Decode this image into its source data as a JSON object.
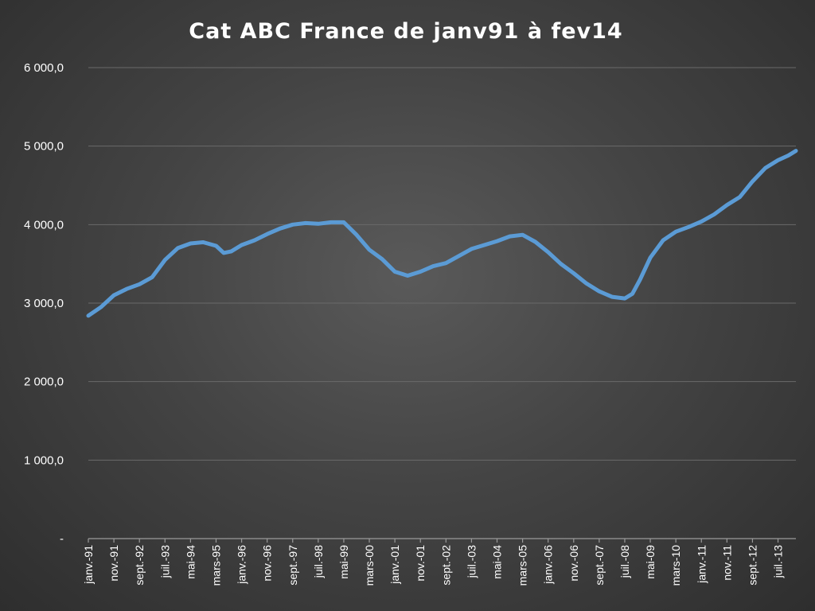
{
  "chart_data": {
    "type": "line",
    "title": "Cat ABC France de janv91 à fev14",
    "xlabel": "",
    "ylabel": "",
    "ylim": [
      0,
      6000
    ],
    "yticks": [
      0,
      1000,
      2000,
      3000,
      4000,
      5000,
      6000
    ],
    "ytick_labels": [
      "-",
      "1 000,0",
      "2 000,0",
      "3 000,0",
      "4 000,0",
      "5 000,0",
      "6 000,0"
    ],
    "grid": true,
    "legend": "none",
    "x_start": "janv.-91",
    "x_end": "févr.-14",
    "n_points": 278,
    "xtick_labels": [
      {
        "index": 0,
        "label": "janv.-91"
      },
      {
        "index": 10,
        "label": "nov.-91"
      },
      {
        "index": 20,
        "label": "sept.-92"
      },
      {
        "index": 30,
        "label": "juil.-93"
      },
      {
        "index": 40,
        "label": "mai-94"
      },
      {
        "index": 50,
        "label": "mars-95"
      },
      {
        "index": 60,
        "label": "janv.-96"
      },
      {
        "index": 70,
        "label": "nov.-96"
      },
      {
        "index": 80,
        "label": "sept.-97"
      },
      {
        "index": 90,
        "label": "juil.-98"
      },
      {
        "index": 100,
        "label": "mai-99"
      },
      {
        "index": 110,
        "label": "mars-00"
      },
      {
        "index": 120,
        "label": "janv.-01"
      },
      {
        "index": 130,
        "label": "nov.-01"
      },
      {
        "index": 140,
        "label": "sept.-02"
      },
      {
        "index": 150,
        "label": "juil.-03"
      },
      {
        "index": 160,
        "label": "mai-04"
      },
      {
        "index": 170,
        "label": "mars-05"
      },
      {
        "index": 180,
        "label": "janv.-06"
      },
      {
        "index": 190,
        "label": "nov.-06"
      },
      {
        "index": 200,
        "label": "sept.-07"
      },
      {
        "index": 210,
        "label": "juil.-08"
      },
      {
        "index": 220,
        "label": "mai-09"
      },
      {
        "index": 230,
        "label": "mars-10"
      },
      {
        "index": 240,
        "label": "janv.-11"
      },
      {
        "index": 250,
        "label": "nov.-11"
      },
      {
        "index": 260,
        "label": "sept.-12"
      },
      {
        "index": 270,
        "label": "juil.-13"
      }
    ],
    "series": [
      {
        "color": "#5b9bd5",
        "points": [
          {
            "i": 0,
            "date": "janv.-91",
            "y": 2840
          },
          {
            "i": 5,
            "date": "juin-91",
            "y": 2950
          },
          {
            "i": 10,
            "date": "nov.-91",
            "y": 3100
          },
          {
            "i": 15,
            "date": "avr.-92",
            "y": 3180
          },
          {
            "i": 20,
            "date": "sept.-92",
            "y": 3240
          },
          {
            "i": 25,
            "date": "févr.-93",
            "y": 3330
          },
          {
            "i": 30,
            "date": "juil.-93",
            "y": 3550
          },
          {
            "i": 35,
            "date": "déc.-93",
            "y": 3700
          },
          {
            "i": 40,
            "date": "mai-94",
            "y": 3760
          },
          {
            "i": 45,
            "date": "oct.-94",
            "y": 3775
          },
          {
            "i": 50,
            "date": "mars-95",
            "y": 3730
          },
          {
            "i": 53,
            "date": "juin-95",
            "y": 3640
          },
          {
            "i": 56,
            "date": "sept.-95",
            "y": 3660
          },
          {
            "i": 60,
            "date": "janv.-96",
            "y": 3740
          },
          {
            "i": 65,
            "date": "juin-96",
            "y": 3800
          },
          {
            "i": 70,
            "date": "nov.-96",
            "y": 3880
          },
          {
            "i": 75,
            "date": "avr.-97",
            "y": 3950
          },
          {
            "i": 80,
            "date": "sept.-97",
            "y": 4000
          },
          {
            "i": 85,
            "date": "févr.-98",
            "y": 4020
          },
          {
            "i": 90,
            "date": "juil.-98",
            "y": 4010
          },
          {
            "i": 95,
            "date": "déc.-98",
            "y": 4030
          },
          {
            "i": 100,
            "date": "mai-99",
            "y": 4030
          },
          {
            "i": 105,
            "date": "oct.-99",
            "y": 3870
          },
          {
            "i": 110,
            "date": "mars-00",
            "y": 3680
          },
          {
            "i": 115,
            "date": "août-00",
            "y": 3560
          },
          {
            "i": 120,
            "date": "janv.-01",
            "y": 3400
          },
          {
            "i": 125,
            "date": "juin-01",
            "y": 3350
          },
          {
            "i": 130,
            "date": "nov.-01",
            "y": 3400
          },
          {
            "i": 135,
            "date": "avr.-02",
            "y": 3470
          },
          {
            "i": 140,
            "date": "sept.-02",
            "y": 3510
          },
          {
            "i": 145,
            "date": "févr.-03",
            "y": 3600
          },
          {
            "i": 150,
            "date": "juil.-03",
            "y": 3690
          },
          {
            "i": 155,
            "date": "déc.-03",
            "y": 3740
          },
          {
            "i": 160,
            "date": "mai-04",
            "y": 3790
          },
          {
            "i": 165,
            "date": "oct.-04",
            "y": 3850
          },
          {
            "i": 170,
            "date": "mars-05",
            "y": 3870
          },
          {
            "i": 175,
            "date": "août-05",
            "y": 3780
          },
          {
            "i": 180,
            "date": "janv.-06",
            "y": 3650
          },
          {
            "i": 185,
            "date": "juin-06",
            "y": 3500
          },
          {
            "i": 190,
            "date": "nov.-06",
            "y": 3380
          },
          {
            "i": 195,
            "date": "avr.-07",
            "y": 3250
          },
          {
            "i": 200,
            "date": "sept.-07",
            "y": 3150
          },
          {
            "i": 205,
            "date": "févr.-08",
            "y": 3080
          },
          {
            "i": 210,
            "date": "juil.-08",
            "y": 3060
          },
          {
            "i": 213,
            "date": "oct.-08",
            "y": 3120
          },
          {
            "i": 216,
            "date": "janv.-09",
            "y": 3300
          },
          {
            "i": 220,
            "date": "mai-09",
            "y": 3580
          },
          {
            "i": 225,
            "date": "oct.-09",
            "y": 3800
          },
          {
            "i": 230,
            "date": "mars-10",
            "y": 3910
          },
          {
            "i": 235,
            "date": "août-10",
            "y": 3970
          },
          {
            "i": 240,
            "date": "janv.-11",
            "y": 4040
          },
          {
            "i": 245,
            "date": "juin-11",
            "y": 4130
          },
          {
            "i": 250,
            "date": "nov.-11",
            "y": 4250
          },
          {
            "i": 255,
            "date": "avr.-12",
            "y": 4350
          },
          {
            "i": 260,
            "date": "sept.-12",
            "y": 4550
          },
          {
            "i": 265,
            "date": "févr.-13",
            "y": 4720
          },
          {
            "i": 270,
            "date": "juil.-13",
            "y": 4820
          },
          {
            "i": 274,
            "date": "nov.-13",
            "y": 4880
          },
          {
            "i": 277,
            "date": "févr.-14",
            "y": 4940
          }
        ]
      }
    ]
  }
}
